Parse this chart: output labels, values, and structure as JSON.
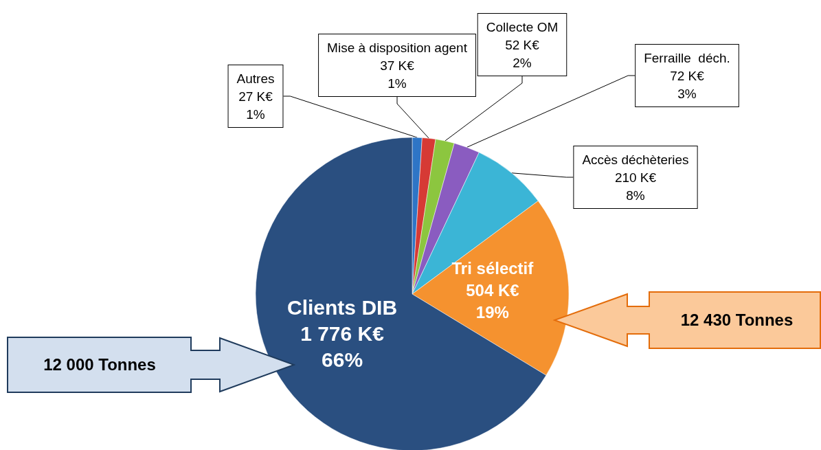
{
  "chart_data": {
    "type": "pie",
    "categories": [
      "Autres",
      "Mise à disposition agent",
      "Collecte OM",
      "Ferraille  déch.",
      "Accès déchèteries",
      "Tri sélectif",
      "Clients DIB"
    ],
    "values": [
      27,
      37,
      52,
      72,
      210,
      504,
      1776
    ],
    "value_labels": [
      "27 K€\n1%",
      "37 K€\n1%",
      "52 K€\n2%",
      "72 K€\n3%",
      "210 K€\n8%",
      "504 K€\n19%",
      "1 776 K€\n66%"
    ],
    "colors": [
      "#2e75c6",
      "#d63a35",
      "#8cc63f",
      "#8a5cc0",
      "#3bb5d6",
      "#f5922f",
      "#2a4f80"
    ],
    "annotations": [
      "12 000 Tonnes",
      "12 430 Tonnes"
    ],
    "legend": false
  }
}
